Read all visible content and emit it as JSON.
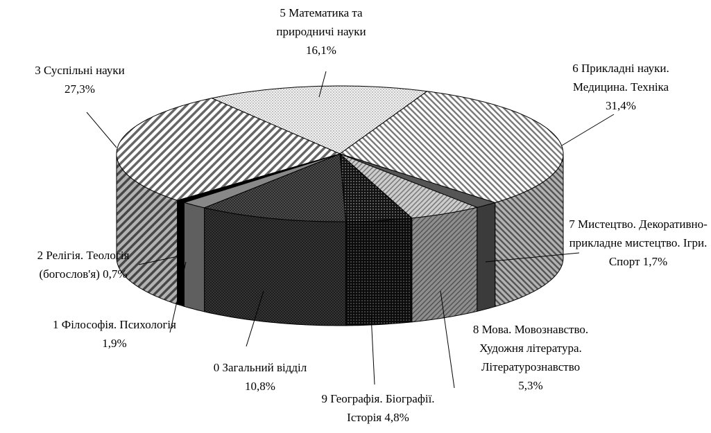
{
  "chart_data": {
    "type": "pie3d",
    "categories": [
      "5 Математика та природничі науки",
      "6 Прикладні науки. Медицина. Техніка",
      "7 Мистецтво. Декоративно-прикладне мистецтво. Ігри. Спорт",
      "8 Мова. Мовознавство. Художня література. Літературознавство",
      "9 Географія. Біографії. Історія",
      "0 Загальний відділ",
      "1 Філософія. Психологія",
      "2 Релігія. Теологія (богослов'я)",
      "3 Суспільні науки"
    ],
    "values": [
      16.1,
      31.4,
      1.7,
      5.3,
      4.8,
      10.8,
      1.9,
      0.7,
      27.3
    ],
    "value_labels": [
      "16,1%",
      "31,4%",
      "1,7%",
      "5,3%",
      "4,8%",
      "10,8%",
      "1,9%",
      "0,7%",
      "27,3%"
    ]
  }
}
